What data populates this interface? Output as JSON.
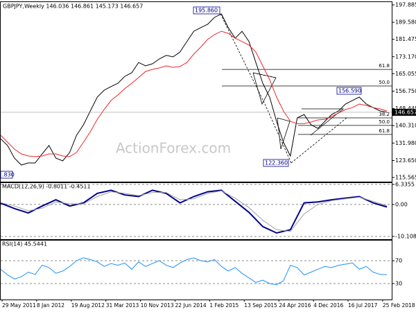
{
  "chart_data": [
    {
      "type": "line",
      "title": "GBPJPY,Weekly  146.036 146.861 145.173 146.657",
      "watermark": "ActionForex.com",
      "ylim": [
        113.58,
        199.54
      ],
      "yticks": [
        197.885,
        {
          "value": 189.58,
          "label": "189.580"
        },
        181.475,
        {
          "value": 173.17,
          "label": "173.170"
        },
        165.055,
        {
          "value": 156.75,
          "label": "156.750"
        },
        148.445,
        {
          "value": 140.31,
          "label": "140.310"
        },
        {
          "value": 131.98,
          "label": "131.980"
        },
        {
          "value": 123.65,
          "label": "123.650"
        },
        115.565
      ],
      "grid": false,
      "last_price": 146.657,
      "annotations": [
        "195.860",
        "156.590",
        "122.360",
        ".830"
      ],
      "levels": [
        {
          "label": "61.8",
          "value": 167.1
        },
        {
          "label": "50.0",
          "value": 159.2
        },
        {
          "label": "38.2",
          "value": 144
        },
        {
          "label": "50.0",
          "value": 140.4
        },
        {
          "label": "61.8",
          "value": 136.1
        }
      ],
      "series": [
        {
          "name": "Close",
          "color": "#000000",
          "values": [
            134,
            130.8,
            124.8,
            121.5,
            122.5,
            122.5,
            126.8,
            130.8,
            124.8,
            123.5,
            127.5,
            135.7,
            140.7,
            147.3,
            153.9,
            157.2,
            158.9,
            160.5,
            163.8,
            165.5,
            170.4,
            168.8,
            169.8,
            172.1,
            173.8,
            173.1,
            175.4,
            180.4,
            185.3,
            187,
            188.6,
            191.9,
            193.6,
            187,
            182,
            185.3,
            180.4,
            170.4,
            160.5,
            153.9,
            142.3,
            132.4,
            125.8,
            144,
            145.6,
            140.7,
            139,
            142.3,
            145.6,
            147.3,
            150.6,
            152.3,
            153.9,
            150.6,
            148.9,
            147.3,
            146.7
          ]
        },
        {
          "name": "MA",
          "color": "#e8262b",
          "values": [
            135.7,
            132.4,
            129.1,
            126.8,
            125.8,
            125.5,
            125.8,
            126.8,
            126.8,
            125.8,
            125.5,
            127.5,
            132.4,
            137.4,
            143.3,
            148,
            152.3,
            154.9,
            157.9,
            160.5,
            163.2,
            166.1,
            167.1,
            167.8,
            168.8,
            168.1,
            168.5,
            170.4,
            174.4,
            177.7,
            181.4,
            183.7,
            185.3,
            184.3,
            182,
            180.4,
            178.7,
            175.4,
            168.8,
            162.2,
            153.9,
            147.3,
            142.3,
            141.3,
            141.3,
            142,
            143,
            143.3,
            144.7,
            146.3,
            148,
            148.9,
            150.6,
            149.9,
            148.9,
            148.3,
            147.3
          ]
        }
      ]
    },
    {
      "type": "line",
      "title": "MACD(12,26,9) -0.8011 -0.4511",
      "ylim": [
        -10.98,
        6.99
      ],
      "yticks": [
        6.3355,
        {
          "value": 0,
          "label": "0.00"
        },
        -10.1082
      ],
      "grid": true,
      "series": [
        {
          "name": "MACD",
          "color": "#00008b",
          "values": [
            0.4,
            -1.3,
            -2.7,
            -0.5,
            1.5,
            -0.5,
            0.5,
            3.5,
            4.5,
            3,
            2.5,
            4.5,
            3.5,
            0.5,
            2.5,
            4,
            4.5,
            1,
            -2.5,
            -7,
            -9,
            -8,
            0.5,
            0.8,
            1.5,
            2,
            2.5,
            0.5,
            -0.8
          ]
        },
        {
          "name": "Signal",
          "color": "#a0a0a0",
          "values": [
            0.6,
            -0.5,
            -2,
            -1.2,
            0.8,
            0.2,
            0.2,
            2.5,
            4,
            3.5,
            2.8,
            3.8,
            3.8,
            1.5,
            1.8,
            3.5,
            4.3,
            2,
            -1,
            -5,
            -8,
            -8.5,
            -3,
            0,
            1.2,
            1.8,
            2.3,
            1,
            -0.45
          ]
        }
      ]
    },
    {
      "type": "line",
      "title": "RSI(14) 45.5441",
      "ylim": [
        2.1,
        105.2
      ],
      "yticks": [
        70,
        30
      ],
      "grid": true,
      "xtick_labels": [
        "29 May 2011",
        "8 Jan 2012",
        "19 Aug 2012",
        "31 Mar 2013",
        "10 Nov 2013",
        "22 Jun 2014",
        "1 Feb 2015",
        "13 Sep 2015",
        "24 Apr 2016",
        "4 Dec 2016",
        "16 Jul 2017",
        "25 Feb 2018"
      ],
      "series": [
        {
          "name": "RSI",
          "color": "#1e90ff",
          "values": [
            55,
            45,
            38,
            42,
            50,
            46,
            62,
            58,
            48,
            52,
            60,
            70,
            75,
            72,
            68,
            60,
            65,
            62,
            66,
            55,
            68,
            60,
            65,
            70,
            62,
            58,
            66,
            72,
            75,
            70,
            68,
            72,
            60,
            52,
            58,
            48,
            40,
            32,
            36,
            30,
            28,
            35,
            62,
            58,
            45,
            50,
            55,
            60,
            58,
            62,
            64,
            66,
            55,
            60,
            50,
            46,
            45.5
          ]
        }
      ]
    }
  ]
}
